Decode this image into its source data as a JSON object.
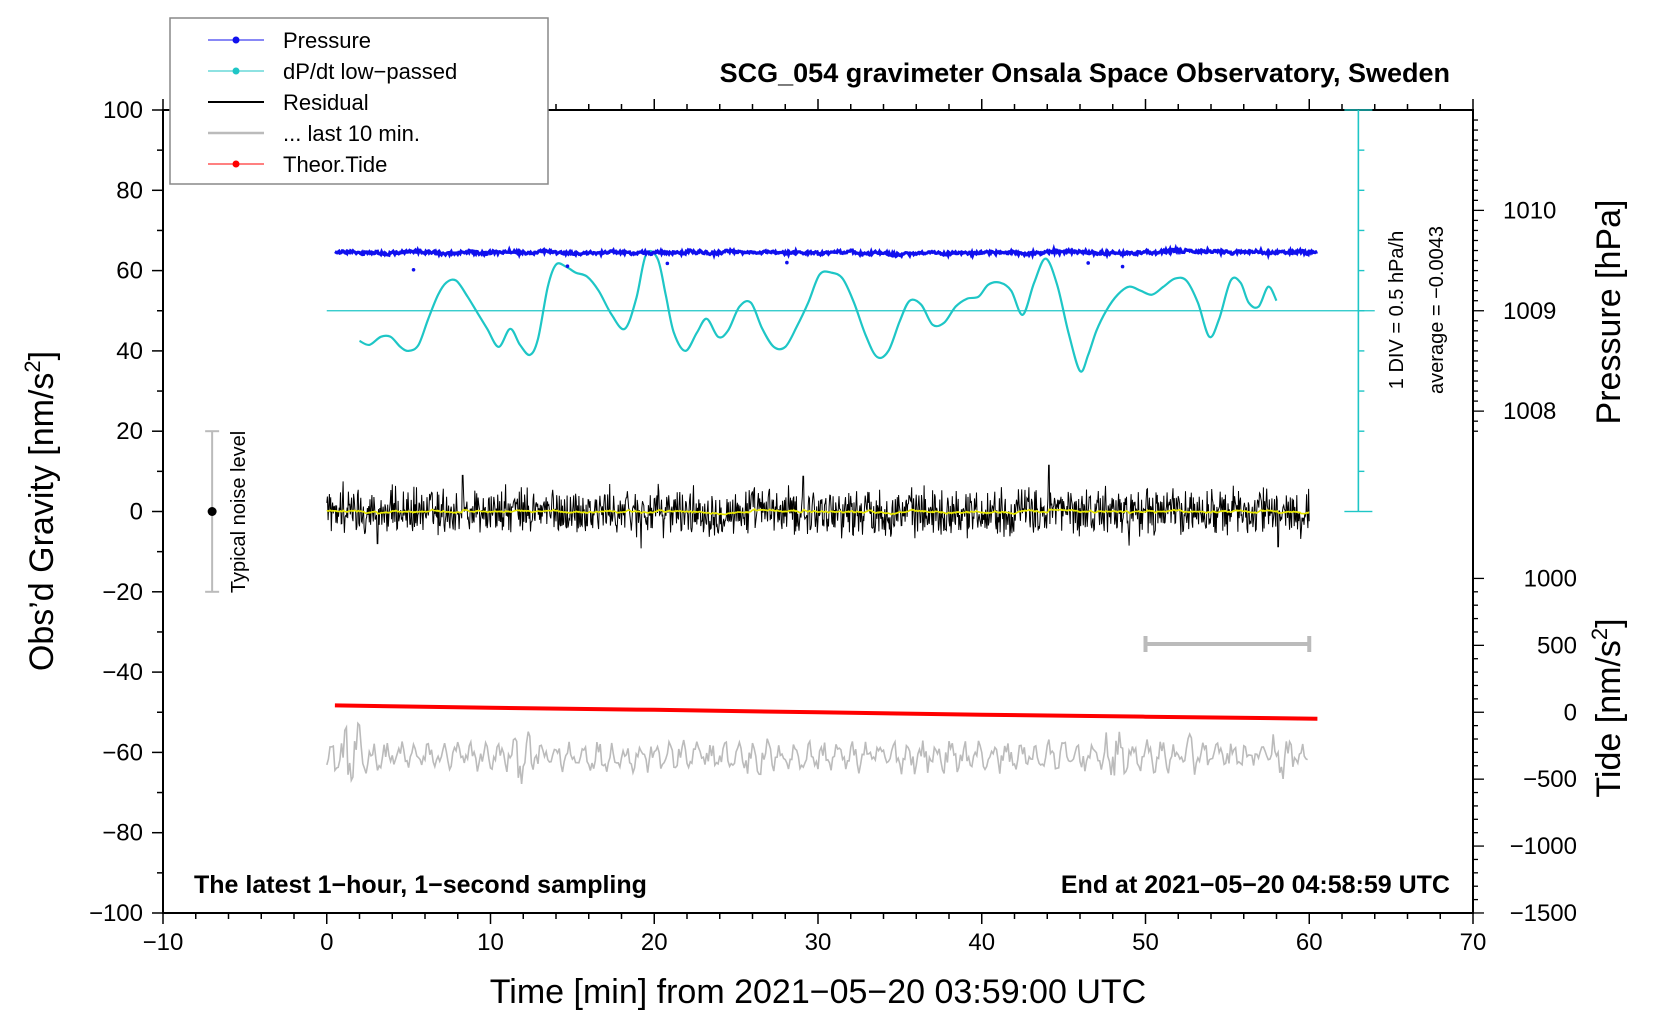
{
  "chart_data": {
    "type": "line",
    "title": "SCG_054 gravimeter Onsala Space Observatory, Sweden",
    "xlabel": "Time [min] from 2021−05−20 03:59:00 UTC",
    "ylabel": "Obs’d Gravity [nm/s²]",
    "ylabel_main": "Obs’d Gravity [nm/s",
    "ylabel_sup": "2",
    "ylabel_end": "]",
    "xlim": [
      -10,
      70
    ],
    "ylim": [
      -100,
      100
    ],
    "x_ticks": [
      -10,
      0,
      10,
      20,
      30,
      40,
      50,
      60,
      70
    ],
    "x_tick_labels": [
      "−10",
      "0",
      "10",
      "20",
      "30",
      "40",
      "50",
      "60",
      "70"
    ],
    "y_ticks": [
      100,
      80,
      60,
      40,
      20,
      0,
      -20,
      -40,
      -60,
      -80,
      -100
    ],
    "y_tick_labels": [
      "100",
      "80",
      "60",
      "40",
      "20",
      "0",
      "−20",
      "−40",
      "−60",
      "−80",
      "−100"
    ],
    "pressure_axis": {
      "label": "Pressure [hPa]",
      "ticks": [
        1010,
        1009,
        1008
      ],
      "tick_labels": [
        "1010",
        "1009",
        "1008"
      ],
      "gravity_at_1010": 75,
      "gravity_per_hpa": 25
    },
    "tide_axis": {
      "label_main": "Tide [nm/s",
      "label_sup": "2",
      "label_end": "]",
      "ticks": [
        1000,
        500,
        0,
        -500,
        -1000,
        -1500
      ],
      "tick_labels": [
        "1000",
        "500",
        "0",
        "−500",
        "−1000",
        "−1500"
      ],
      "gravity_at_0": -50,
      "gravity_per_1000": 33.33
    },
    "pressure_scale": {
      "label1": "1 DIV = 0.5 hPa/h",
      "label2": "average = −0.0043",
      "x": 63,
      "y_from": 0,
      "y_to": 100,
      "divisions": 10,
      "baseline_y": 50
    },
    "noise_bar": {
      "label": "Typical noise level",
      "x": -7,
      "center": 0,
      "low": -20,
      "high": 20
    },
    "window_bar": {
      "x_from": 50,
      "x_to": 60,
      "y": -33
    },
    "series": [
      {
        "name": "Pressure",
        "color": "#1010ee",
        "x_range": [
          0.5,
          60.5
        ],
        "level": 64.5,
        "noise": 0.7,
        "outliers": [
          [
            5.3,
            60.2
          ],
          [
            14.7,
            61.1
          ],
          [
            20.8,
            61.8
          ],
          [
            28.1,
            62.0
          ],
          [
            46.5,
            61.9
          ],
          [
            48.6,
            61.0
          ]
        ]
      },
      {
        "name": "dP/dt low−passed",
        "color": "#1ec6c6",
        "x": [
          2,
          2.6,
          3.3,
          3.9,
          4.5,
          5.0,
          5.6,
          6.2,
          6.8,
          7.3,
          7.9,
          8.6,
          9.2,
          9.8,
          10.5,
          11.2,
          11.8,
          12.4,
          12.9,
          13.5,
          14.0,
          14.6,
          15.2,
          15.9,
          16.6,
          17.4,
          18.2,
          18.9,
          19.5,
          20.2,
          20.7,
          21.2,
          21.9,
          22.6,
          23.2,
          23.9,
          24.5,
          25.2,
          25.9,
          26.6,
          27.3,
          28.0,
          28.7,
          29.4,
          30.1,
          30.8,
          31.5,
          32.2,
          32.9,
          33.6,
          34.3,
          35.0,
          35.6,
          36.3,
          37.0,
          37.7,
          38.4,
          39.1,
          39.8,
          40.4,
          41.1,
          41.8,
          42.5,
          43.2,
          43.9,
          44.6,
          45.3,
          46.0,
          46.5,
          47.0,
          47.6,
          48.3,
          49.0,
          49.7,
          50.4,
          51.1,
          51.8,
          52.5,
          53.2,
          53.9,
          54.5,
          55.2,
          55.8,
          56.3,
          56.9,
          57.5,
          58.0
        ],
        "y": [
          42.5,
          41.5,
          43.5,
          43.5,
          41.0,
          40.0,
          41.5,
          48.0,
          54.0,
          57.0,
          57.5,
          53.5,
          49.5,
          45.5,
          41.0,
          45.5,
          41.5,
          39.0,
          43.0,
          56.0,
          61.5,
          61.0,
          59.5,
          58.5,
          55.0,
          49.0,
          45.5,
          53.0,
          64.0,
          63.0,
          54.0,
          44.5,
          40.0,
          44.5,
          48.0,
          43.5,
          45.0,
          51.0,
          52.0,
          45.5,
          41.0,
          41.0,
          46.0,
          52.0,
          59.0,
          59.5,
          58.0,
          52.0,
          44.0,
          38.5,
          40.0,
          47.5,
          52.5,
          51.5,
          46.5,
          47.0,
          51.0,
          53.0,
          53.5,
          56.5,
          57.0,
          55.0,
          49.0,
          57.0,
          63.0,
          56.5,
          44.5,
          35.0,
          39.0,
          45.0,
          50.0,
          54.0,
          56.0,
          55.0,
          54.0,
          56.0,
          58.0,
          57.5,
          52.0,
          43.5,
          48.0,
          57.5,
          57.0,
          52.0,
          51.0,
          56.0,
          52.5
        ]
      },
      {
        "name": "Residual",
        "color": "#000000",
        "x_range": [
          0,
          60
        ],
        "level": 0,
        "amplitude": 7,
        "spikes": [
          [
            1.0,
            7.5
          ],
          [
            3.1,
            -8.0
          ],
          [
            8.3,
            9.0
          ],
          [
            19.2,
            -9.2
          ],
          [
            29.1,
            8.8
          ],
          [
            44.1,
            11.5
          ],
          [
            49.0,
            -8.5
          ],
          [
            58.1,
            -8.8
          ]
        ]
      },
      {
        "name": "... last 10 min.",
        "color": "#bbbbbb",
        "x_range": [
          0,
          60
        ],
        "level": -61,
        "amplitude": 4,
        "bursts": [
          [
            1.5,
            10
          ],
          [
            12.0,
            7
          ],
          [
            20.5,
            5
          ],
          [
            26.0,
            6
          ],
          [
            36.0,
            5
          ],
          [
            48.0,
            8
          ],
          [
            52.5,
            7
          ],
          [
            58.0,
            7
          ]
        ]
      },
      {
        "name": "Theor.Tide",
        "color": "#ff0000",
        "x": [
          0.5,
          10,
          20,
          30,
          40,
          50,
          60.5
        ],
        "y": [
          -48.3,
          -48.9,
          -49.4,
          -50.0,
          -50.6,
          -51.1,
          -51.6
        ]
      }
    ],
    "annotations": {
      "bottom_left": "The latest 1−hour, 1−second sampling",
      "bottom_right": "End at 2021−05−20 04:58:59 UTC"
    },
    "legend": [
      {
        "label": "Pressure",
        "color": "#1010ee",
        "marker": true
      },
      {
        "label": "dP/dt low−passed",
        "color": "#1ec6c6",
        "marker": true
      },
      {
        "label": "Residual",
        "color": "#000000",
        "marker": false
      },
      {
        "label": "... last 10 min.",
        "color": "#bbbbbb",
        "marker": false
      },
      {
        "label": "Theor.Tide",
        "color": "#ff0000",
        "marker": true
      }
    ]
  }
}
